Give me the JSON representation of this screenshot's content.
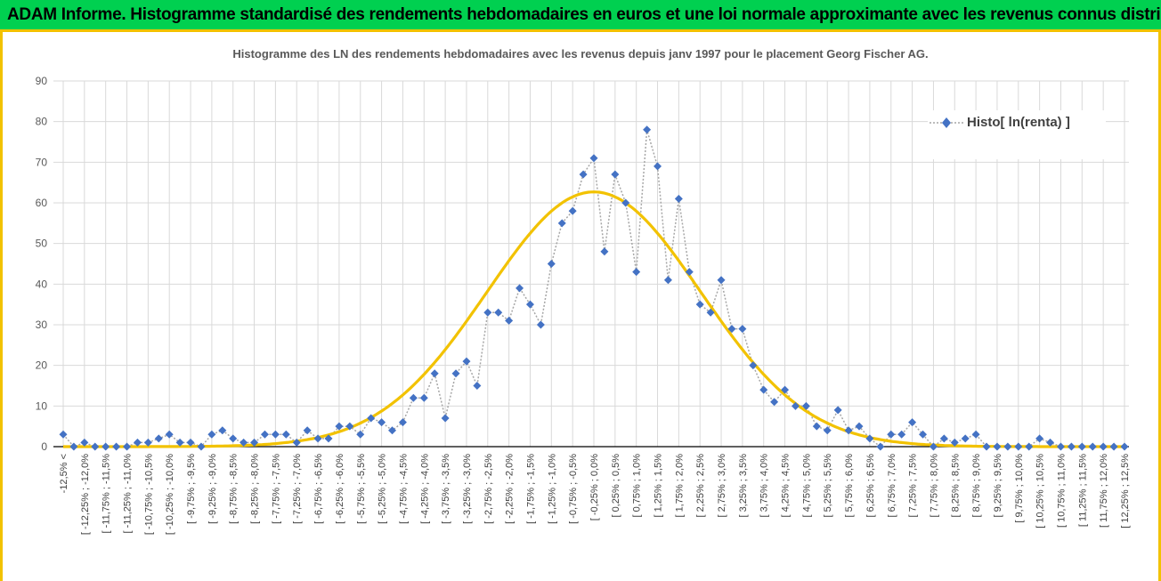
{
  "banner": {
    "title": "ADAM Informe. Histogramme standardisé des rendements hebdomadaires en euros et une loi normale approximante avec les revenus connus distribués"
  },
  "colors": {
    "banner_bg": "#00d050",
    "frame": "#f2c200",
    "series_marker": "#4472c4",
    "series_line": "#a6a6a6",
    "normal_curve": "#f2c200",
    "grid": "#d9d9d9"
  },
  "chart_data": {
    "type": "line",
    "title": "Histogramme des LN des rendements hebdomadaires avec les revenus depuis janv 1997 pour le placement Georg Fischer AG.",
    "xlabel": "",
    "ylabel": "",
    "ylim": [
      0,
      90
    ],
    "yticks": [
      0,
      10,
      20,
      30,
      40,
      50,
      60,
      70,
      80,
      90
    ],
    "grid": true,
    "legend_position": "top-right",
    "categories": [
      "-12,5% <",
      "[ -12,25% ; -12,0%",
      "[ -11,75% ; -11,5%",
      "[ -11,25% ; -11,0%",
      "[ -10,75% ; -10,5%",
      "[ -10,25% ; -10,0%",
      "[ -9,75% ; -9,5%",
      "[ -9,25% ; -9,0%",
      "[ -8,75% ; -8,5%",
      "[ -8,25% ; -8,0%",
      "[ -7,75% ; -7,5%",
      "[ -7,25% ; -7,0%",
      "[ -6,75% ; -6,5%",
      "[ -6,25% ; -6,0%",
      "[ -5,75% ; -5,5%",
      "[ -5,25% ; -5,0%",
      "[ -4,75% ; -4,5%",
      "[ -4,25% ; -4,0%",
      "[ -3,75% ; -3,5%",
      "[ -3,25% ; -3,0%",
      "[ -2,75% ; -2,5%",
      "[ -2,25% ; -2,0%",
      "[ -1,75% ; -1,5%",
      "[ -1,25% ; -1,0%",
      "[ -0,75% ; -0,5%",
      "[ -0,25% ; 0,0%",
      "[ 0,25% ; 0,5%",
      "[ 0,75% ; 1,0%",
      "[ 1,25% ; 1,5%",
      "[ 1,75% ; 2,0%",
      "[ 2,25% ; 2,5%",
      "[ 2,75% ; 3,0%",
      "[ 3,25% ; 3,5%",
      "[ 3,75% ; 4,0%",
      "[ 4,25% ; 4,5%",
      "[ 4,75% ; 5,0%",
      "[ 5,25% ; 5,5%",
      "[ 5,75% ; 6,0%",
      "[ 6,25% ; 6,5%",
      "[ 6,75% ; 7,0%",
      "[ 7,25% ; 7,5%",
      "[ 7,75% ; 8,0%",
      "[ 8,25% ; 8,5%",
      "[ 8,75% ; 9,0%",
      "[ 9,25% ; 9,5%",
      "[ 9,75% ; 10,0%",
      "[ 10,25% ; 10,5%",
      "[ 10,75% ; 11,0%",
      "[ 11,25% ; 11,5%",
      "[ 11,75% ; 12,0%",
      "[ 12,25% ; 12,5%"
    ],
    "series": [
      {
        "name": "Histo[ ln(renta) ]",
        "type": "scatter-dotted-line",
        "x": [
          -12.5,
          -12.25,
          -12,
          -11.75,
          -11.5,
          -11.25,
          -11,
          -10.75,
          -10.5,
          -10.25,
          -10,
          -9.75,
          -9.5,
          -9.25,
          -9,
          -8.75,
          -8.5,
          -8.25,
          -8,
          -7.75,
          -7.5,
          -7.25,
          -7,
          -6.75,
          -6.5,
          -6.25,
          -6,
          -5.75,
          -5.5,
          -5.25,
          -5,
          -4.75,
          -4.5,
          -4.25,
          -4,
          -3.75,
          -3.5,
          -3.25,
          -3,
          -2.75,
          -2.5,
          -2.25,
          -2,
          -1.75,
          -1.5,
          -1.25,
          -1,
          -0.75,
          -0.5,
          -0.25,
          0,
          0.25,
          0.5,
          0.75,
          1,
          1.25,
          1.5,
          1.75,
          2,
          2.25,
          2.5,
          2.75,
          3,
          3.25,
          3.5,
          3.75,
          4,
          4.25,
          4.5,
          4.75,
          5,
          5.25,
          5.5,
          5.75,
          6,
          6.25,
          6.5,
          6.75,
          7,
          7.25,
          7.5,
          7.75,
          8,
          8.25,
          8.5,
          8.75,
          9,
          9.25,
          9.5,
          9.75,
          10,
          10.25,
          10.5,
          10.75,
          11,
          11.25,
          11.5,
          11.75,
          12,
          12.25,
          12.5
        ],
        "values": [
          3,
          0,
          1,
          0,
          0,
          0,
          0,
          1,
          1,
          2,
          3,
          1,
          1,
          0,
          3,
          4,
          2,
          1,
          1,
          3,
          3,
          3,
          1,
          4,
          2,
          2,
          5,
          5,
          3,
          7,
          6,
          4,
          6,
          12,
          12,
          18,
          7,
          18,
          21,
          15,
          33,
          33,
          31,
          39,
          35,
          30,
          45,
          55,
          58,
          67,
          71,
          48,
          67,
          60,
          43,
          78,
          69,
          41,
          61,
          43,
          35,
          33,
          41,
          29,
          29,
          20,
          14,
          11,
          14,
          10,
          10,
          5,
          4,
          9,
          4,
          5,
          2,
          0,
          3,
          3,
          6,
          3,
          0,
          2,
          1,
          2,
          3,
          0,
          0,
          0,
          0,
          0,
          2,
          1,
          0,
          0,
          0,
          0,
          0,
          0,
          0
        ]
      },
      {
        "type": "normal-curve",
        "mean": 0,
        "sigma": 2.52,
        "peak": 62.7,
        "line_color": "#f2c200"
      }
    ]
  }
}
